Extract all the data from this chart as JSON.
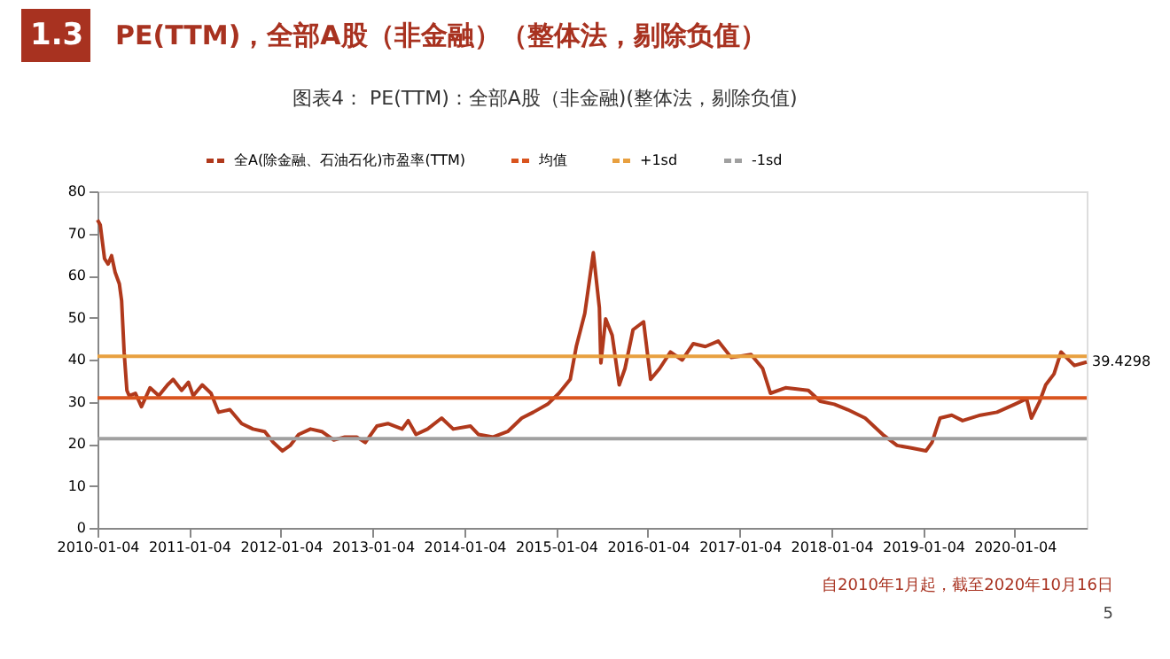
{
  "chart_data": {
    "type": "line",
    "title": "PE(TTM)，全部A股（非金融）（整体法，剔除负值）",
    "subtitle": "图表4： PE(TTM)：全部A股（非金融)(整体法，剔除负值)",
    "x": [
      "2010-01-04",
      "2010-01-15",
      "2010-02-01",
      "2010-02-15",
      "2010-03-01",
      "2010-03-15",
      "2010-04-01",
      "2010-04-10",
      "2010-04-20",
      "2010-05-01",
      "2010-05-10",
      "2010-06-04",
      "2010-06-28",
      "2010-08-01",
      "2010-09-05",
      "2010-10-10",
      "2010-11-01",
      "2010-12-05",
      "2011-01-01",
      "2011-01-20",
      "2011-02-25",
      "2011-04-01",
      "2011-05-01",
      "2011-06-15",
      "2011-08-01",
      "2011-09-15",
      "2011-11-01",
      "2011-12-05",
      "2012-01-10",
      "2012-02-10",
      "2012-03-15",
      "2012-05-01",
      "2012-06-15",
      "2012-08-01",
      "2012-09-15",
      "2012-11-01",
      "2012-12-05",
      "2013-01-20",
      "2013-03-05",
      "2013-05-01",
      "2013-05-25",
      "2013-06-25",
      "2013-08-10",
      "2013-10-05",
      "2013-11-20",
      "2014-01-28",
      "2014-03-01",
      "2014-04-28",
      "2014-06-25",
      "2014-08-20",
      "2014-10-05",
      "2014-12-01",
      "2015-01-15",
      "2015-03-01",
      "2015-03-25",
      "2015-04-28",
      "2015-06-01",
      "2015-06-25",
      "2015-07-01",
      "2015-07-20",
      "2015-08-15",
      "2015-09-12",
      "2015-10-05",
      "2015-11-06",
      "2015-12-18",
      "2016-01-15",
      "2016-02-20",
      "2016-04-03",
      "2016-05-20",
      "2016-07-03",
      "2016-08-20",
      "2016-10-10",
      "2016-12-01",
      "2017-02-18",
      "2017-04-05",
      "2017-05-06",
      "2017-07-05",
      "2017-10-04",
      "2017-11-20",
      "2018-01-15",
      "2018-03-10",
      "2018-05-18",
      "2018-07-27",
      "2018-09-22",
      "2018-11-18",
      "2019-01-15",
      "2019-02-08",
      "2019-03-12",
      "2019-04-28",
      "2019-06-10",
      "2019-08-20",
      "2019-10-25",
      "2020-01-04",
      "2020-02-20",
      "2020-03-10",
      "2020-04-12",
      "2020-05-06",
      "2020-06-08",
      "2020-07-06",
      "2020-08-06",
      "2020-08-28",
      "2020-10-16"
    ],
    "series": [
      {
        "name": "全A(除金融、石油石化)市盈率(TTM)",
        "color": "#b0391c",
        "values": [
          73.2,
          72,
          64,
          62.7,
          64.7,
          60.8,
          58,
          54,
          41.8,
          32.7,
          31.4,
          32,
          28.8,
          33.3,
          31.4,
          34,
          35.3,
          32.7,
          34.6,
          31.4,
          34,
          32,
          27.5,
          28.1,
          24.8,
          23.5,
          22.9,
          20.3,
          18.3,
          19.6,
          22.2,
          23.5,
          22.9,
          20.9,
          21.6,
          21.6,
          20.3,
          24.2,
          24.8,
          23.5,
          25.5,
          22.2,
          23.5,
          26.1,
          23.5,
          24.2,
          22.2,
          21.6,
          22.9,
          26.1,
          27.5,
          29.4,
          32,
          35.3,
          43.1,
          51,
          65.4,
          52.3,
          39.2,
          49.7,
          45.8,
          34,
          37.9,
          47.1,
          49,
          35.3,
          37.9,
          41.8,
          39.9,
          43.8,
          43.1,
          44.4,
          40.5,
          41.2,
          37.9,
          32,
          33.3,
          32.7,
          30.1,
          29.4,
          28.1,
          26.1,
          22.2,
          19.6,
          19,
          18.3,
          20.3,
          26.1,
          26.8,
          25.5,
          26.8,
          27.5,
          29.4,
          30.7,
          26.1,
          30.1,
          34,
          36.6,
          41.8,
          39.9,
          38.6,
          39.4298
        ]
      }
    ],
    "ref_lines": [
      {
        "axis": "y",
        "value": 30.9,
        "label": "均值",
        "color": "#d9541e"
      },
      {
        "axis": "y",
        "value": 40.8,
        "label": "+1sd",
        "color": "#e8a040"
      },
      {
        "axis": "y",
        "value": 21.2,
        "label": "-1sd",
        "color": "#a0a0a0"
      }
    ],
    "annotations": [
      "1.3",
      {
        "text": "39.4298",
        "x": "2020-10-16",
        "y": 39.4298
      },
      "自2010年1月起，截至2020年10月16日",
      "5"
    ],
    "xlim": [
      "2010-01-04",
      "2020-10-16"
    ],
    "xticks": [
      "2010-01-04",
      "2011-01-04",
      "2012-01-04",
      "2013-01-04",
      "2014-01-04",
      "2015-01-04",
      "2016-01-04",
      "2017-01-04",
      "2018-01-04",
      "2019-01-04",
      "2020-01-04"
    ],
    "ylim": [
      0,
      80
    ],
    "yticks": [
      0,
      10,
      20,
      30,
      40,
      50,
      60,
      70,
      80
    ],
    "grid": false,
    "legend": "top",
    "marker": "none",
    "line_style": "solid"
  }
}
